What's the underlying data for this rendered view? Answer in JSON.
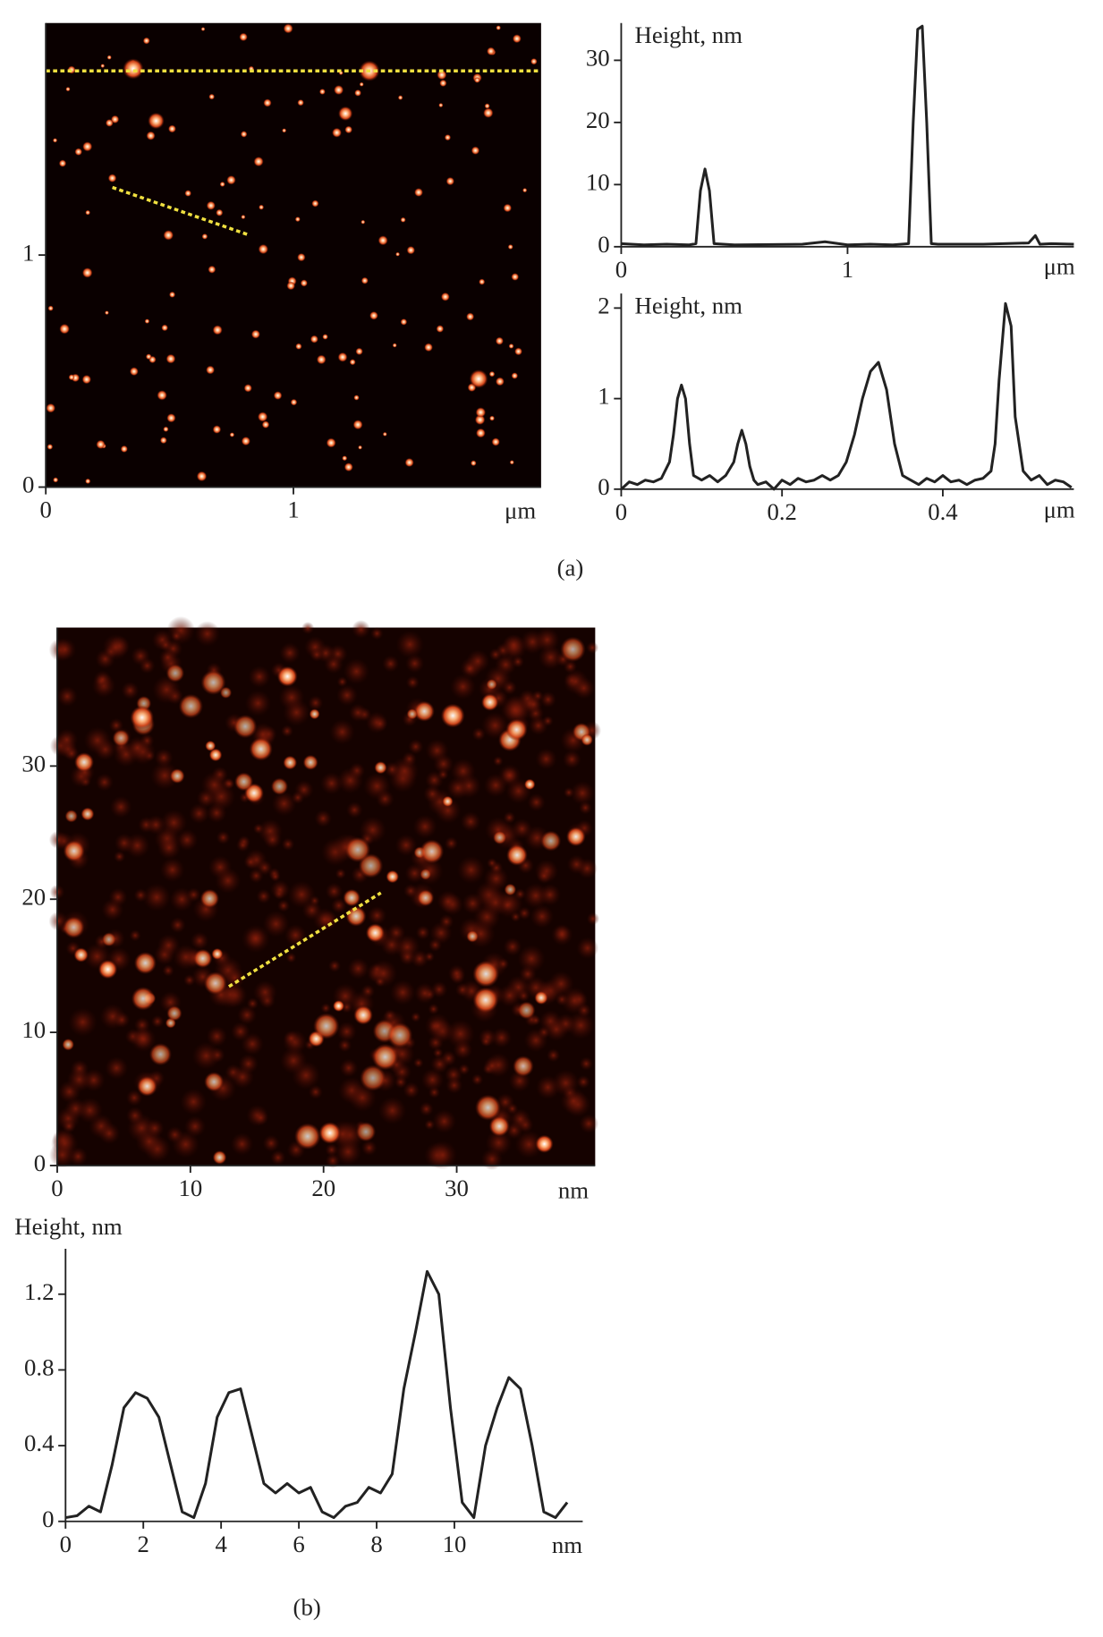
{
  "chart_data": [
    {
      "type": "image",
      "xlim": [
        0,
        2
      ],
      "ylim": [
        0,
        2
      ],
      "xticks": [
        0,
        1
      ],
      "yticks": [
        0,
        1
      ],
      "x_unit": "μm"
    },
    {
      "type": "line",
      "y_label": "Height, nm",
      "x_unit": "μm",
      "xlim": [
        0,
        2
      ],
      "ylim": [
        0,
        36
      ],
      "xticks": [
        0,
        1
      ],
      "yticks": [
        0,
        10,
        20,
        30
      ],
      "color": "#222222",
      "x": [
        0,
        0.1,
        0.2,
        0.3,
        0.33,
        0.35,
        0.37,
        0.39,
        0.41,
        0.5,
        0.8,
        0.9,
        1.0,
        1.1,
        1.2,
        1.27,
        1.29,
        1.31,
        1.33,
        1.35,
        1.37,
        1.4,
        1.6,
        1.8,
        1.83,
        1.85,
        1.9,
        2.0
      ],
      "values": [
        0.5,
        0.3,
        0.4,
        0.3,
        0.5,
        9,
        12.5,
        9,
        0.5,
        0.3,
        0.4,
        0.8,
        0.3,
        0.4,
        0.3,
        0.5,
        20,
        35,
        35.5,
        20,
        0.5,
        0.4,
        0.4,
        0.6,
        1.8,
        0.4,
        0.5,
        0.4
      ]
    },
    {
      "type": "line",
      "y_label": "Height, nm",
      "x_unit": "μm",
      "xlim": [
        0,
        0.563
      ],
      "ylim": [
        0,
        2.16
      ],
      "xticks": [
        0,
        0.2,
        0.4
      ],
      "yticks": [
        0,
        1,
        2
      ],
      "color": "#222222",
      "x": [
        0,
        0.01,
        0.02,
        0.03,
        0.04,
        0.05,
        0.06,
        0.065,
        0.07,
        0.075,
        0.08,
        0.085,
        0.09,
        0.1,
        0.11,
        0.12,
        0.13,
        0.14,
        0.145,
        0.15,
        0.155,
        0.16,
        0.165,
        0.17,
        0.18,
        0.19,
        0.2,
        0.21,
        0.22,
        0.23,
        0.24,
        0.25,
        0.26,
        0.27,
        0.28,
        0.29,
        0.3,
        0.31,
        0.32,
        0.33,
        0.34,
        0.35,
        0.36,
        0.37,
        0.38,
        0.39,
        0.4,
        0.41,
        0.42,
        0.43,
        0.44,
        0.45,
        0.46,
        0.465,
        0.47,
        0.478,
        0.485,
        0.49,
        0.5,
        0.51,
        0.52,
        0.53,
        0.54,
        0.55,
        0.56
      ],
      "values": [
        0,
        0.08,
        0.05,
        0.1,
        0.08,
        0.12,
        0.3,
        0.6,
        1.0,
        1.15,
        1.0,
        0.5,
        0.15,
        0.1,
        0.15,
        0.08,
        0.15,
        0.3,
        0.5,
        0.65,
        0.5,
        0.25,
        0.1,
        0.05,
        0.08,
        0.0,
        0.1,
        0.05,
        0.12,
        0.08,
        0.1,
        0.15,
        0.1,
        0.15,
        0.3,
        0.6,
        1.0,
        1.3,
        1.4,
        1.1,
        0.5,
        0.15,
        0.1,
        0.05,
        0.12,
        0.08,
        0.15,
        0.08,
        0.1,
        0.05,
        0.1,
        0.12,
        0.2,
        0.5,
        1.2,
        2.05,
        1.8,
        0.8,
        0.2,
        0.1,
        0.15,
        0.05,
        0.1,
        0.08,
        0.02
      ]
    },
    {
      "type": "image",
      "xlim": [
        0,
        40.4
      ],
      "ylim": [
        0,
        40.4
      ],
      "xticks": [
        0,
        10,
        20,
        30
      ],
      "yticks": [
        0,
        10,
        20,
        30
      ],
      "x_unit": "nm"
    },
    {
      "type": "line",
      "y_label": "Height, nm",
      "x_unit": "nm",
      "xlim": [
        0,
        13.3
      ],
      "ylim": [
        0,
        1.44
      ],
      "xticks": [
        0,
        2,
        4,
        6,
        8,
        10
      ],
      "yticks": [
        0,
        0.4,
        0.8,
        1.2
      ],
      "color": "#222222",
      "x": [
        0,
        0.3,
        0.6,
        0.9,
        1.2,
        1.5,
        1.8,
        2.1,
        2.4,
        2.7,
        3.0,
        3.3,
        3.6,
        3.9,
        4.2,
        4.5,
        4.8,
        5.1,
        5.4,
        5.7,
        6.0,
        6.3,
        6.6,
        6.9,
        7.2,
        7.5,
        7.8,
        8.1,
        8.4,
        8.7,
        9.0,
        9.3,
        9.6,
        9.9,
        10.2,
        10.5,
        10.8,
        11.1,
        11.4,
        11.7,
        12.0,
        12.3,
        12.6,
        12.9
      ],
      "values": [
        0.02,
        0.03,
        0.08,
        0.05,
        0.3,
        0.6,
        0.68,
        0.65,
        0.55,
        0.3,
        0.05,
        0.02,
        0.2,
        0.55,
        0.68,
        0.7,
        0.45,
        0.2,
        0.15,
        0.2,
        0.15,
        0.18,
        0.05,
        0.02,
        0.08,
        0.1,
        0.18,
        0.15,
        0.25,
        0.7,
        1.0,
        1.32,
        1.2,
        0.6,
        0.1,
        0.02,
        0.4,
        0.6,
        0.76,
        0.7,
        0.4,
        0.05,
        0.02,
        0.1
      ]
    }
  ],
  "captions": [
    "(a)",
    "(b)"
  ]
}
